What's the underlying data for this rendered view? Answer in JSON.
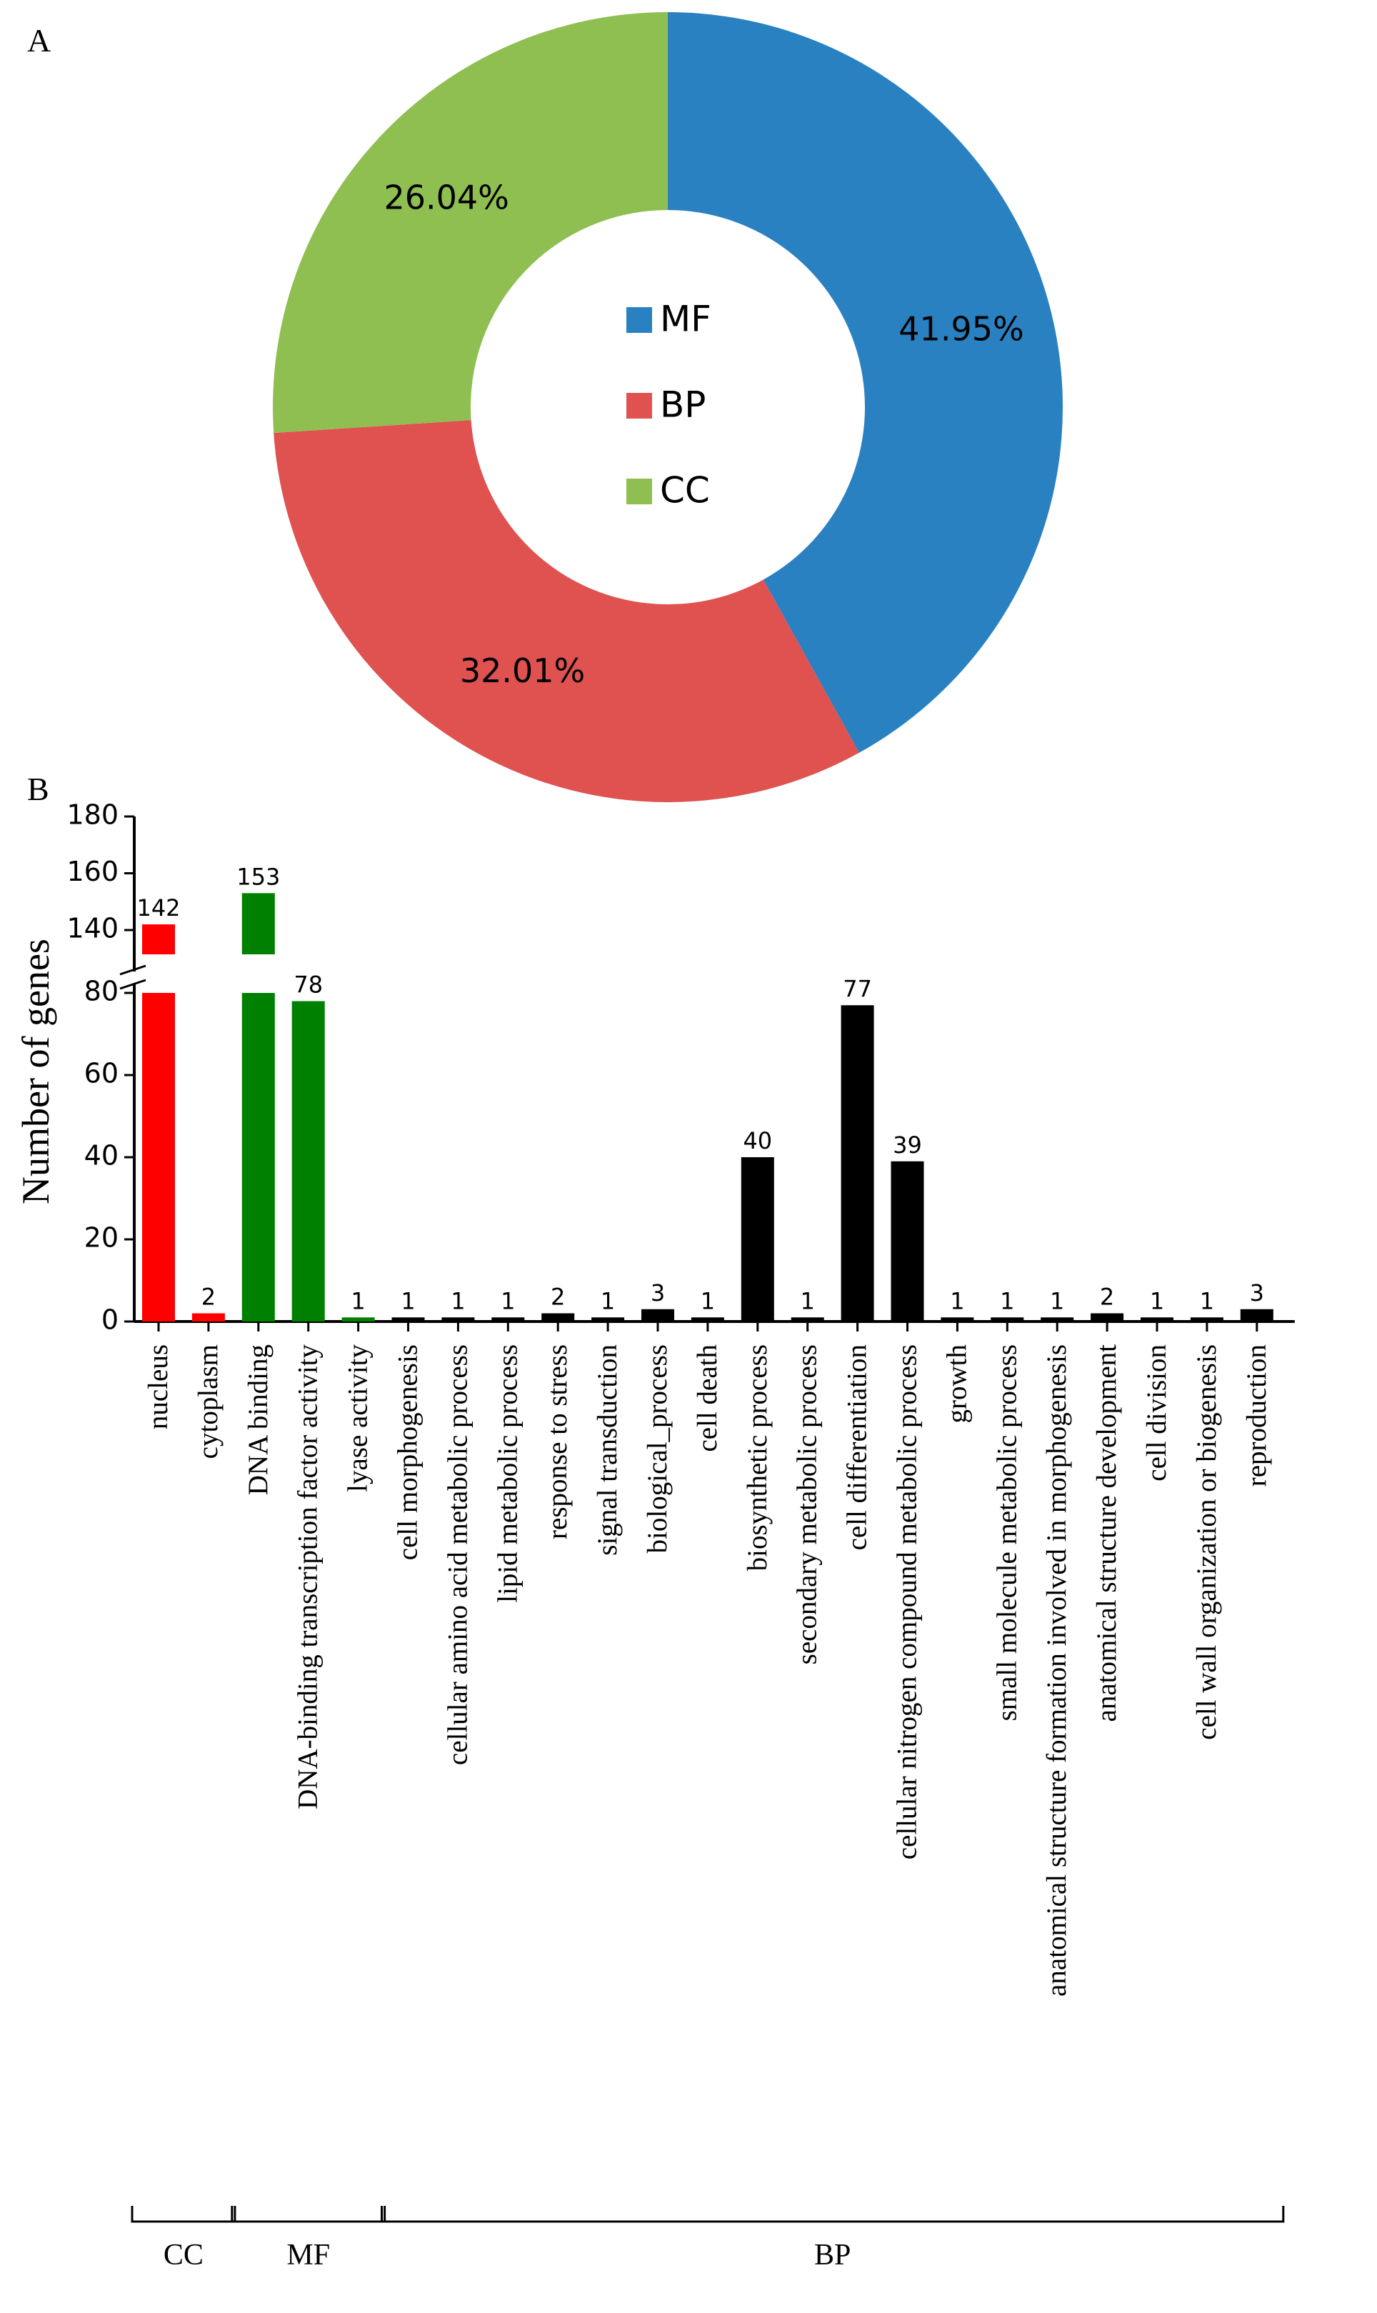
{
  "panel_a_label": "A",
  "panel_b_label": "B",
  "colors": {
    "MF": "#2a81c1",
    "BP": "#df5250",
    "CC": "#8fbe51",
    "bar_CC": "#ff0000",
    "bar_MF": "#008000",
    "bar_BP": "#000000"
  },
  "chart_data": [
    {
      "type": "pie",
      "variant": "donut",
      "labels": [
        "MF",
        "BP",
        "CC"
      ],
      "values": [
        41.95,
        32.01,
        26.04
      ],
      "value_labels": [
        "41.95%",
        "32.01%",
        "26.04%"
      ],
      "legend": {
        "position": "center",
        "entries": [
          "MF",
          "BP",
          "CC"
        ]
      }
    },
    {
      "type": "bar",
      "ylabel": "Number of genes",
      "axis_break": {
        "from": 80,
        "to": 140
      },
      "ylim": [
        0,
        180
      ],
      "yticks": [
        "0",
        "20",
        "40",
        "60",
        "80",
        "140",
        "160",
        "180"
      ],
      "categories": [
        "nucleus",
        "cytoplasm",
        "DNA binding",
        "DNA-binding transcription factor activity",
        "lyase activity",
        "cell morphogenesis",
        "cellular amino acid metabolic process",
        "lipid metabolic process",
        "response to stress",
        "signal transduction",
        "biological_process",
        "cell death",
        "biosynthetic process",
        "secondary metabolic process",
        "cell differentiation",
        "cellular nitrogen compound metabolic process",
        "growth",
        "small molecule metabolic process",
        "anatomical structure formation involved in morphogenesis",
        "anatomical structure development",
        "cell division",
        "cell wall organization or biogenesis",
        "reproduction"
      ],
      "values": [
        142,
        2,
        153,
        78,
        1,
        1,
        1,
        1,
        2,
        1,
        3,
        1,
        40,
        1,
        77,
        39,
        1,
        1,
        1,
        2,
        1,
        1,
        3
      ],
      "groups": [
        "CC",
        "CC",
        "MF",
        "MF",
        "MF",
        "BP",
        "BP",
        "BP",
        "BP",
        "BP",
        "BP",
        "BP",
        "BP",
        "BP",
        "BP",
        "BP",
        "BP",
        "BP",
        "BP",
        "BP",
        "BP",
        "BP",
        "BP"
      ],
      "group_brackets": [
        {
          "label": "CC",
          "first": 0,
          "last": 1
        },
        {
          "label": "MF",
          "first": 2,
          "last": 4
        },
        {
          "label": "BP",
          "first": 5,
          "last": 22
        }
      ],
      "grid": false
    }
  ]
}
